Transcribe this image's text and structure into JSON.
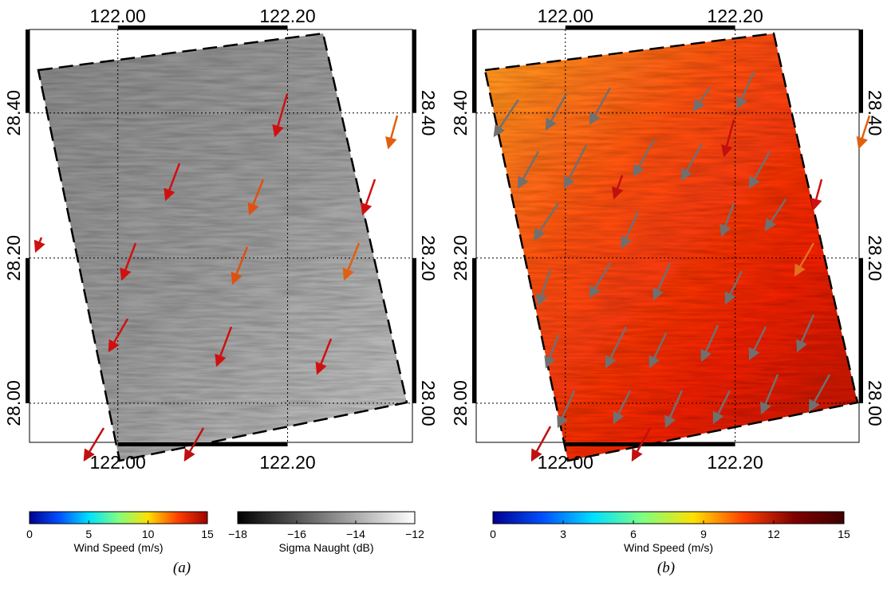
{
  "panels": [
    {
      "caption": "(a)",
      "lon_ticks": [
        {
          "value": 122.0,
          "label": "122.00"
        },
        {
          "value": 122.2,
          "label": "122.20"
        }
      ],
      "lat_ticks": [
        {
          "value": 28.4,
          "label": "28.40"
        },
        {
          "value": 28.2,
          "label": "28.20"
        },
        {
          "value": 28.0,
          "label": "28.00"
        }
      ],
      "lonlim": [
        121.896,
        122.347
      ],
      "latlim": [
        27.946,
        28.515
      ],
      "colorbars": [
        {
          "title": "Wind Speed (m/s)",
          "lim": [
            0,
            15
          ],
          "ticks": [
            0,
            5,
            10,
            15
          ],
          "colormap": [
            "#00008f",
            "#0050ff",
            "#00e0ff",
            "#80ff80",
            "#ffe000",
            "#ff4000",
            "#a00000"
          ]
        },
        {
          "title": "Sigma Naught (dB)",
          "lim": [
            -18,
            -12
          ],
          "ticks": [
            {
              "value": -18,
              "label": "−18"
            },
            {
              "value": -16,
              "label": "−16"
            },
            {
              "value": -14,
              "label": "−14"
            },
            {
              "value": -12,
              "label": "−12"
            }
          ],
          "colormap": [
            "#000000",
            "#ffffff"
          ]
        }
      ]
    },
    {
      "caption": "(b)",
      "lon_ticks": [
        {
          "value": 122.0,
          "label": "122.00"
        },
        {
          "value": 122.2,
          "label": "122.20"
        }
      ],
      "lat_ticks": [
        {
          "value": 28.4,
          "label": "28.40"
        },
        {
          "value": 28.2,
          "label": "28.20"
        },
        {
          "value": 28.0,
          "label": "28.00"
        }
      ],
      "lonlim": [
        121.895,
        122.346
      ],
      "latlim": [
        27.946,
        28.515
      ],
      "colorbars": [
        {
          "title": "Wind Speed (m/s)",
          "lim": [
            0,
            15
          ],
          "ticks": [
            0,
            3,
            6,
            9,
            12,
            15
          ],
          "colormap": [
            "#00008f",
            "#0050ff",
            "#00e0ff",
            "#80ff80",
            "#ffe000",
            "#ff4000",
            "#800000",
            "#400000"
          ]
        }
      ]
    }
  ]
}
